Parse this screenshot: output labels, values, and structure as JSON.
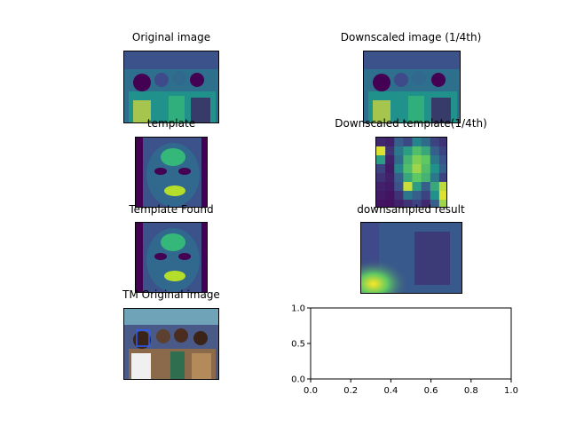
{
  "figure": {
    "titles": {
      "original": "Original image",
      "downscaled": "Downscaled image (1/4th)",
      "template": "template",
      "downscaled_template": "Downscaled template(1/4th)",
      "template_found": "Template Found",
      "downsampled_result": "downsampled result",
      "tm_original": "TM Original image"
    }
  },
  "chart_data": {
    "type": "image-grid",
    "colormap": "viridis",
    "empty_axes": {
      "xlim": [
        0.0,
        1.0
      ],
      "ylim": [
        0.0,
        1.0
      ],
      "xticks": [
        "0.0",
        "0.2",
        "0.4",
        "0.6",
        "0.8",
        "1.0"
      ],
      "yticks": [
        "0.0",
        "0.5",
        "1.0"
      ]
    },
    "downscaled_template_grid": [
      [
        0.12,
        0.1,
        0.3,
        0.22,
        0.45,
        0.35,
        0.2,
        0.15
      ],
      [
        0.95,
        0.15,
        0.4,
        0.55,
        0.7,
        0.6,
        0.3,
        0.2
      ],
      [
        0.55,
        0.1,
        0.35,
        0.65,
        0.8,
        0.75,
        0.4,
        0.25
      ],
      [
        0.2,
        0.08,
        0.45,
        0.7,
        0.85,
        0.7,
        0.5,
        0.3
      ],
      [
        0.15,
        0.1,
        0.3,
        0.6,
        0.75,
        0.65,
        0.4,
        0.2
      ],
      [
        0.1,
        0.08,
        0.25,
        0.92,
        0.55,
        0.3,
        0.6,
        0.9
      ],
      [
        0.08,
        0.06,
        0.15,
        0.4,
        0.3,
        0.2,
        0.5,
        0.95
      ],
      [
        0.06,
        0.05,
        0.1,
        0.15,
        0.2,
        0.12,
        0.3,
        0.85
      ]
    ]
  }
}
